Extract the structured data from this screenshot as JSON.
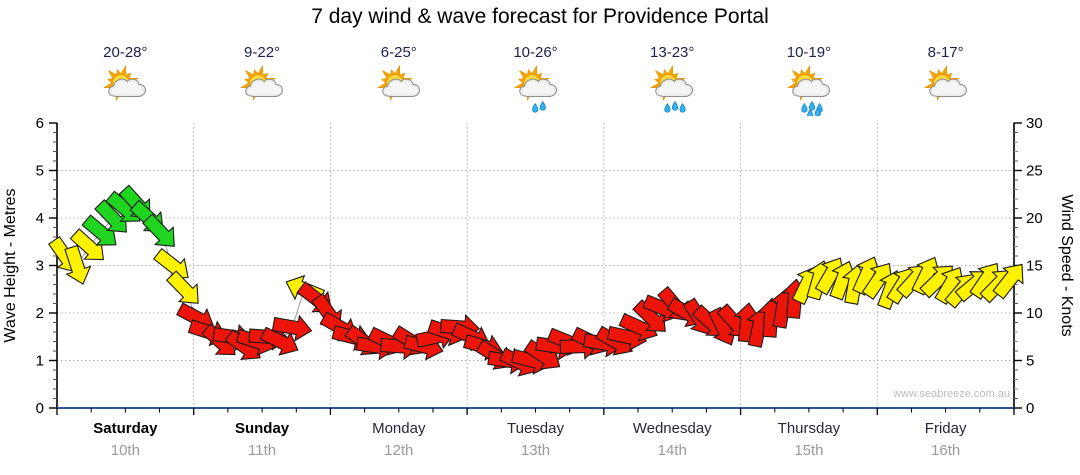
{
  "title": "7 day wind & wave forecast for Providence Portal",
  "watermark": "www.seabreeze.com.au",
  "days": [
    {
      "name": "Saturday",
      "date": "10th",
      "temp": "20-28°",
      "icon": "partly-cloudy",
      "rain_drops": 0,
      "weekend": true
    },
    {
      "name": "Sunday",
      "date": "11th",
      "temp": "9-22°",
      "icon": "partly-cloudy",
      "rain_drops": 0,
      "weekend": true
    },
    {
      "name": "Monday",
      "date": "12th",
      "temp": "6-25°",
      "icon": "partly-cloudy",
      "rain_drops": 0,
      "weekend": false
    },
    {
      "name": "Tuesday",
      "date": "13th",
      "temp": "10-26°",
      "icon": "partly-cloudy-rain",
      "rain_drops": 2,
      "weekend": false
    },
    {
      "name": "Wednesday",
      "date": "14th",
      "temp": "13-23°",
      "icon": "partly-cloudy-rain",
      "rain_drops": 3,
      "weekend": false
    },
    {
      "name": "Thursday",
      "date": "15th",
      "temp": "10-19°",
      "icon": "partly-cloudy-rain",
      "rain_drops": 5,
      "weekend": false
    },
    {
      "name": "Friday",
      "date": "16th",
      "temp": "8-17°",
      "icon": "partly-cloudy",
      "rain_drops": 0,
      "weekend": false
    }
  ],
  "chart_data": {
    "type": "wind-arrows",
    "title": "7 day wind & wave forecast for Providence Portal",
    "grid": "dotted",
    "y_left": {
      "label": "Wave Height - Metres",
      "min": 0,
      "max": 6,
      "major_ticks": [
        0,
        1,
        2,
        3,
        4,
        5,
        6
      ]
    },
    "y_right": {
      "label": "Wind Speed - Knots",
      "min": 0,
      "max": 30,
      "major_ticks": [
        0,
        5,
        10,
        15,
        20,
        25,
        30
      ]
    },
    "x_categories": [
      "Saturday 10th",
      "Sunday 11th",
      "Monday 12th",
      "Tuesday 13th",
      "Wednesday 14th",
      "Thursday 15th",
      "Friday 16th"
    ],
    "speed_colors": {
      "green_hex": "#1fd51f",
      "yellow_hex": "#fff200",
      "red_hex": "#ed1509",
      "green_min_kt": 17.5,
      "yellow_min_kt": 12
    },
    "axis_colors": {
      "x_axis_line": "#31539b",
      "grid_line": "#b0b0b0",
      "tick_text": "#000000"
    },
    "interval_note": "points evenly spaced across 7 days, value = wind speed knots, dir = arrow heading degrees clockwise from east",
    "points_kt_dir": [
      [
        16,
        55
      ],
      [
        15,
        72
      ],
      [
        17,
        42
      ],
      [
        18.5,
        40
      ],
      [
        20,
        46
      ],
      [
        21,
        40
      ],
      [
        21.5,
        48
      ],
      [
        20,
        42
      ],
      [
        18.5,
        46
      ],
      [
        15,
        38
      ],
      [
        12.5,
        46
      ],
      [
        9.5,
        28
      ],
      [
        8,
        18
      ],
      [
        7,
        42
      ],
      [
        7.5,
        8
      ],
      [
        6.5,
        36
      ],
      [
        7,
        18
      ],
      [
        7.5,
        4
      ],
      [
        7,
        26
      ],
      [
        8.5,
        10
      ],
      [
        12.5,
        202
      ],
      [
        11.5,
        38
      ],
      [
        10,
        55
      ],
      [
        8.5,
        30
      ],
      [
        7.5,
        14
      ],
      [
        7,
        36
      ],
      [
        6.5,
        8
      ],
      [
        7,
        26
      ],
      [
        6.5,
        4
      ],
      [
        7,
        32
      ],
      [
        6.5,
        14
      ],
      [
        7.5,
        -12
      ],
      [
        8,
        18
      ],
      [
        8.5,
        4
      ],
      [
        7.5,
        24
      ],
      [
        6.5,
        16
      ],
      [
        5.5,
        32
      ],
      [
        5,
        8
      ],
      [
        4.8,
        26
      ],
      [
        5,
        14
      ],
      [
        5.5,
        34
      ],
      [
        6.5,
        8
      ],
      [
        7,
        22
      ],
      [
        6.5,
        -2
      ],
      [
        7,
        26
      ],
      [
        6.8,
        10
      ],
      [
        7,
        30
      ],
      [
        7.5,
        12
      ],
      [
        8.5,
        24
      ],
      [
        9.5,
        44
      ],
      [
        10.5,
        22
      ],
      [
        10.8,
        50
      ],
      [
        10,
        30
      ],
      [
        9.5,
        58
      ],
      [
        9,
        42
      ],
      [
        8.5,
        64
      ],
      [
        9,
        48
      ],
      [
        9,
        -84
      ],
      [
        8.5,
        -78
      ],
      [
        9.5,
        -86
      ],
      [
        10.5,
        -80
      ],
      [
        11.5,
        -85
      ],
      [
        13,
        -64
      ],
      [
        13.5,
        -74
      ],
      [
        14,
        -60
      ],
      [
        13.5,
        -70
      ],
      [
        13,
        -80
      ],
      [
        14,
        -66
      ],
      [
        13.5,
        -56
      ],
      [
        12.5,
        -70
      ],
      [
        13,
        -58
      ],
      [
        13.5,
        -48
      ],
      [
        14,
        -64
      ],
      [
        13.5,
        -44
      ],
      [
        13,
        -60
      ],
      [
        12.5,
        -50
      ],
      [
        13,
        -40
      ],
      [
        13.5,
        -56
      ],
      [
        13,
        -46
      ],
      [
        13.5,
        -52
      ]
    ]
  }
}
